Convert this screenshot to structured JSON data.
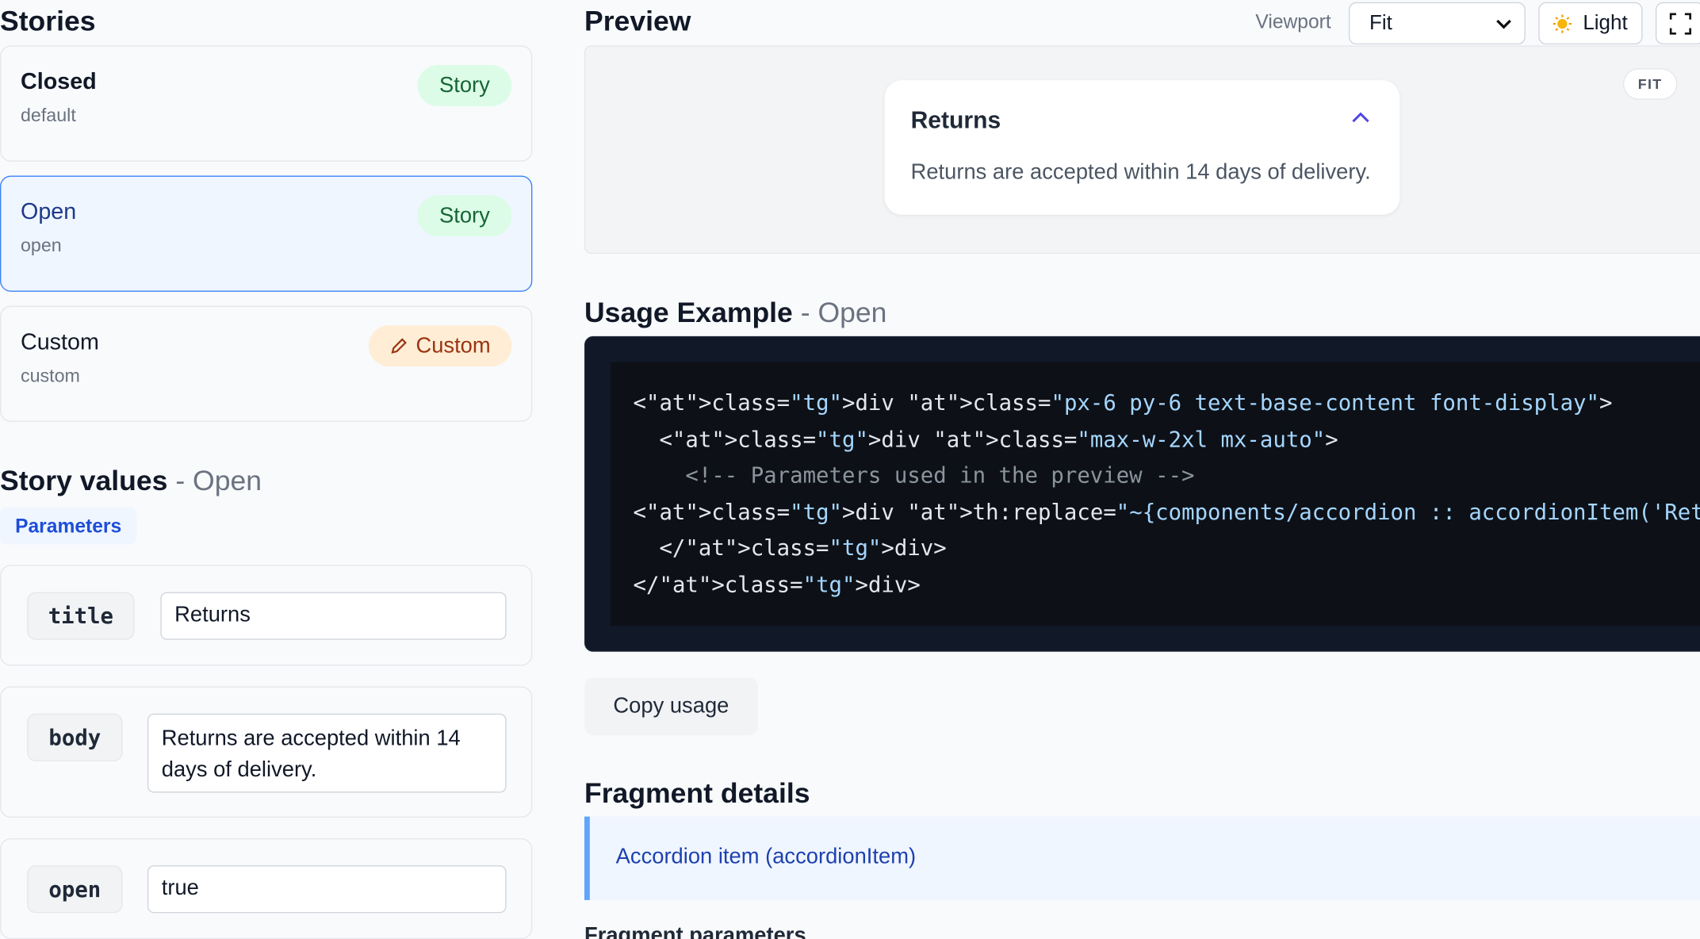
{
  "stories": {
    "title": "Stories",
    "items": [
      {
        "name": "Closed",
        "slug": "default",
        "badge": "Story"
      },
      {
        "name": "Open",
        "slug": "open",
        "badge": "Story"
      },
      {
        "name": "Custom",
        "slug": "custom",
        "badge": "Custom"
      }
    ]
  },
  "story_values": {
    "title": "Story values",
    "suffix": "- Open",
    "tab": "Parameters",
    "params": [
      {
        "key": "title",
        "value": "Returns"
      },
      {
        "key": "body",
        "value": "Returns are accepted within 14 days of delivery."
      },
      {
        "key": "open",
        "value": "true"
      }
    ]
  },
  "preview": {
    "title": "Preview",
    "viewport_label": "Viewport",
    "viewport_value": "Fit",
    "theme": "Light",
    "fit_badge": "FIT",
    "accordion": {
      "title": "Returns",
      "body": "Returns are accepted within 14 days of delivery."
    }
  },
  "usage": {
    "title": "Usage Example",
    "suffix": "- Open",
    "lines": [
      "<div class=\"px-6 py-6 text-base-content font-display\">",
      "  <div class=\"max-w-2xl mx-auto\">",
      "    <!-- Parameters used in the preview -->",
      "<div th:replace=\"~{components/accordion :: accordionItem('Returns', 'Returns are",
      "  </div>",
      "</div>"
    ],
    "copy": "Copy usage"
  },
  "fragment": {
    "title": "Fragment details",
    "link": "Accordion item (accordionItem)",
    "next_title": "Fragment parameters"
  }
}
